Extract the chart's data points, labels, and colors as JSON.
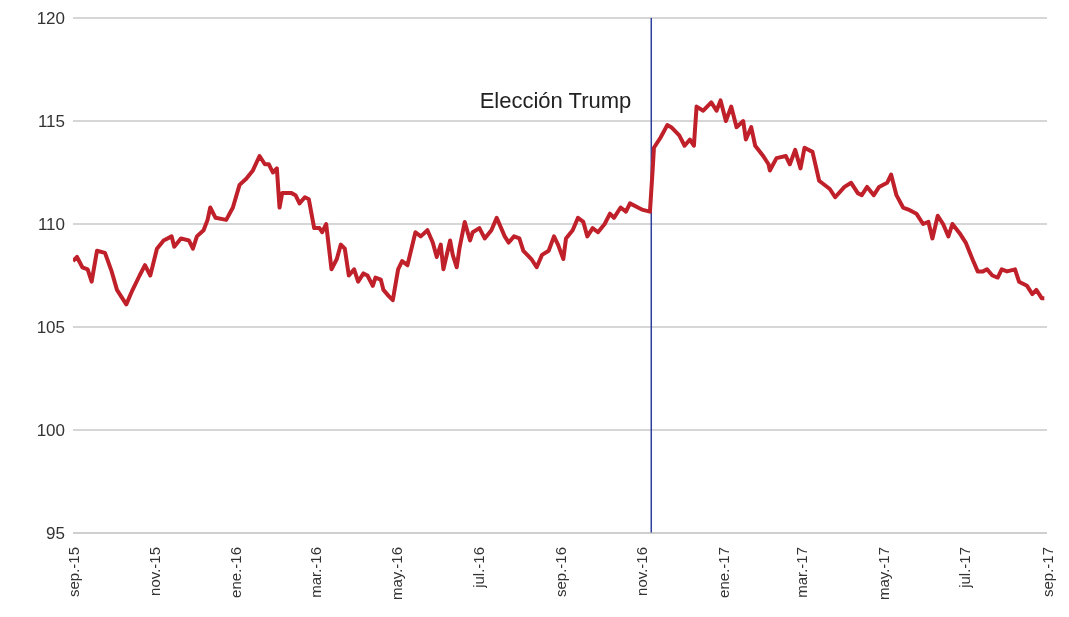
{
  "chart_data": {
    "type": "line",
    "x": [
      "2015-09-01",
      "2015-09-04",
      "2015-09-08",
      "2015-09-12",
      "2015-09-15",
      "2015-09-19",
      "2015-09-25",
      "2015-09-30",
      "2015-10-04",
      "2015-10-07",
      "2015-10-11",
      "2015-10-15",
      "2015-10-21",
      "2015-10-25",
      "2015-10-29",
      "2015-11-03",
      "2015-11-08",
      "2015-11-14",
      "2015-11-16",
      "2015-11-21",
      "2015-11-27",
      "2015-11-30",
      "2015-12-03",
      "2015-12-08",
      "2015-12-11",
      "2015-12-13",
      "2015-12-17",
      "2015-12-25",
      "2015-12-30",
      "2016-01-04",
      "2016-01-09",
      "2016-01-14",
      "2016-01-19",
      "2016-01-23",
      "2016-01-26",
      "2016-01-29",
      "2016-02-01",
      "2016-02-03",
      "2016-02-05",
      "2016-02-12",
      "2016-02-15",
      "2016-02-18",
      "2016-02-22",
      "2016-02-25",
      "2016-02-29",
      "2016-03-04",
      "2016-03-06",
      "2016-03-09",
      "2016-03-13",
      "2016-03-17",
      "2016-03-20",
      "2016-03-23",
      "2016-03-26",
      "2016-03-30",
      "2016-04-02",
      "2016-04-06",
      "2016-04-09",
      "2016-04-13",
      "2016-04-15",
      "2016-04-19",
      "2016-04-21",
      "2016-04-25",
      "2016-04-28",
      "2016-05-02",
      "2016-05-05",
      "2016-05-09",
      "2016-05-12",
      "2016-05-15",
      "2016-05-19",
      "2016-05-24",
      "2016-05-28",
      "2016-05-31",
      "2016-06-03",
      "2016-06-05",
      "2016-06-10",
      "2016-06-12",
      "2016-06-15",
      "2016-06-17",
      "2016-06-21",
      "2016-06-25",
      "2016-06-27",
      "2016-07-02",
      "2016-07-06",
      "2016-07-11",
      "2016-07-15",
      "2016-07-21",
      "2016-07-24",
      "2016-07-28",
      "2016-08-01",
      "2016-08-04",
      "2016-08-10",
      "2016-08-14",
      "2016-08-18",
      "2016-08-23",
      "2016-08-27",
      "2016-08-30",
      "2016-09-03",
      "2016-09-05",
      "2016-09-10",
      "2016-09-14",
      "2016-09-18",
      "2016-09-21",
      "2016-09-25",
      "2016-09-29",
      "2016-10-04",
      "2016-10-08",
      "2016-10-11",
      "2016-10-16",
      "2016-10-20",
      "2016-10-23",
      "2016-10-29",
      "2016-11-01",
      "2016-11-07",
      "2016-11-09",
      "2016-11-10",
      "2016-11-15",
      "2016-11-20",
      "2016-11-23",
      "2016-11-29",
      "2016-12-03",
      "2016-12-07",
      "2016-12-10",
      "2016-12-12",
      "2016-12-17",
      "2016-12-23",
      "2016-12-27",
      "2016-12-30",
      "2017-01-03",
      "2017-01-07",
      "2017-01-11",
      "2017-01-16",
      "2017-01-18",
      "2017-01-22",
      "2017-01-25",
      "2017-01-31",
      "2017-02-04",
      "2017-02-05",
      "2017-02-10",
      "2017-02-17",
      "2017-02-20",
      "2017-02-24",
      "2017-02-28",
      "2017-03-03",
      "2017-03-09",
      "2017-03-14",
      "2017-03-22",
      "2017-03-26",
      "2017-04-02",
      "2017-04-07",
      "2017-04-12",
      "2017-04-15",
      "2017-04-19",
      "2017-04-24",
      "2017-04-28",
      "2017-05-04",
      "2017-05-07",
      "2017-05-11",
      "2017-05-16",
      "2017-05-20",
      "2017-05-26",
      "2017-05-31",
      "2017-06-04",
      "2017-06-07",
      "2017-06-11",
      "2017-06-15",
      "2017-06-19",
      "2017-06-22",
      "2017-06-28",
      "2017-07-02",
      "2017-07-07",
      "2017-07-11",
      "2017-07-15",
      "2017-07-18",
      "2017-07-22",
      "2017-07-26",
      "2017-07-29",
      "2017-08-02",
      "2017-08-08",
      "2017-08-11",
      "2017-08-17",
      "2017-08-21",
      "2017-08-24",
      "2017-08-28",
      "2017-08-30"
    ],
    "series": [
      {
        "color": "#c0202a",
        "values": [
          108.2,
          108.4,
          107.9,
          107.8,
          107.2,
          108.7,
          108.6,
          107.7,
          106.8,
          106.5,
          106.1,
          106.7,
          107.5,
          108,
          107.5,
          108.8,
          109.2,
          109.4,
          108.9,
          109.3,
          109.2,
          108.8,
          109.4,
          109.7,
          110.2,
          110.8,
          110.3,
          110.2,
          110.8,
          111.9,
          112.2,
          112.6,
          113.3,
          112.9,
          112.9,
          112.5,
          112.7,
          110.8,
          111.5,
          111.5,
          111.4,
          111,
          111.3,
          111.2,
          109.8,
          109.8,
          109.6,
          110,
          107.8,
          108.3,
          109,
          108.8,
          107.5,
          107.8,
          107.2,
          107.6,
          107.5,
          107,
          107.4,
          107.3,
          106.8,
          106.5,
          106.3,
          107.8,
          108.2,
          108,
          108.8,
          109.6,
          109.4,
          109.7,
          109.1,
          108.4,
          109,
          107.8,
          109.2,
          108.5,
          107.9,
          108.8,
          110.1,
          109.2,
          109.6,
          109.8,
          109.3,
          109.7,
          110.3,
          109.4,
          109.1,
          109.4,
          109.3,
          108.7,
          108.3,
          107.9,
          108.5,
          108.7,
          109.4,
          109,
          108.3,
          109.3,
          109.7,
          110.3,
          110.1,
          109.4,
          109.8,
          109.6,
          110,
          110.5,
          110.3,
          110.8,
          110.6,
          111,
          110.8,
          110.7,
          110.6,
          112.6,
          113.7,
          114.2,
          114.8,
          114.7,
          114.3,
          113.8,
          114.1,
          113.8,
          115.7,
          115.5,
          115.9,
          115.5,
          116,
          115,
          115.7,
          114.7,
          115,
          114.1,
          114.7,
          113.8,
          113.3,
          112.9,
          112.6,
          113.2,
          113.3,
          112.9,
          113.6,
          112.7,
          113.7,
          113.5,
          112.1,
          111.7,
          111.3,
          111.8,
          112,
          111.5,
          111.4,
          111.8,
          111.4,
          111.8,
          112,
          112.4,
          111.4,
          110.8,
          110.7,
          110.5,
          110,
          110.1,
          109.3,
          110.4,
          110,
          109.4,
          110,
          109.5,
          109.1,
          108.3,
          107.7,
          107.7,
          107.8,
          107.5,
          107.4,
          107.8,
          107.7,
          107.8,
          107.2,
          107,
          106.6,
          106.8,
          106.4,
          106.4
        ]
      }
    ],
    "xlim": [
      "2015-09-01",
      "2017-09-01"
    ],
    "xticks": [
      {
        "value": "2015-09-01",
        "label": "sep.-15"
      },
      {
        "value": "2015-11-01",
        "label": "nov.-15"
      },
      {
        "value": "2016-01-01",
        "label": "ene.-16"
      },
      {
        "value": "2016-03-01",
        "label": "mar.-16"
      },
      {
        "value": "2016-05-01",
        "label": "may.-16"
      },
      {
        "value": "2016-07-01",
        "label": "jul.-16"
      },
      {
        "value": "2016-09-01",
        "label": "sep.-16"
      },
      {
        "value": "2016-11-01",
        "label": "nov.-16"
      },
      {
        "value": "2017-01-01",
        "label": "ene.-17"
      },
      {
        "value": "2017-03-01",
        "label": "mar.-17"
      },
      {
        "value": "2017-05-01",
        "label": "may.-17"
      },
      {
        "value": "2017-07-01",
        "label": "jul.-17"
      },
      {
        "value": "2017-09-01",
        "label": "sep.-17"
      }
    ],
    "ylim": [
      95,
      120
    ],
    "yticks": [
      95,
      100,
      105,
      110,
      115,
      120
    ],
    "grid": "y",
    "marker": "none",
    "line_style": "solid",
    "ref_lines": [
      {
        "axis": "x",
        "value": "2016-11-08",
        "label": "Elección Trump",
        "color": "#2e3f9e"
      }
    ]
  }
}
